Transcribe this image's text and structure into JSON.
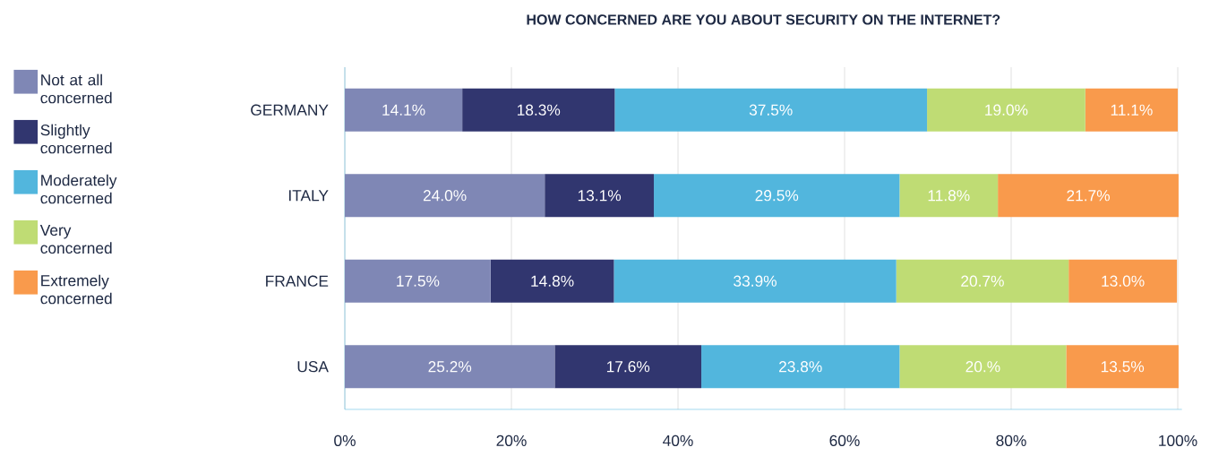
{
  "chart_data": {
    "type": "bar",
    "orientation": "horizontal",
    "stacked": true,
    "title": "HOW CONCERNED ARE YOU ABOUT SECURITY ON THE INTERNET?",
    "categories": [
      "GERMANY",
      "ITALY",
      "FRANCE",
      "USA"
    ],
    "series": [
      {
        "name": "Not at all concerned",
        "color": "#7f87b5",
        "values": [
          14.1,
          24.0,
          17.5,
          25.2
        ],
        "value_labels": [
          "14.1%",
          "24.0%",
          "17.5%",
          "25.2%"
        ]
      },
      {
        "name": "Slightly concerned",
        "color": "#31366f",
        "values": [
          18.3,
          13.1,
          14.8,
          17.6
        ],
        "value_labels": [
          "18.3%",
          "13.1%",
          "14.8%",
          "17.6%"
        ]
      },
      {
        "name": "Moderately concerned",
        "color": "#52b6dd",
        "values": [
          37.5,
          29.5,
          33.9,
          23.8
        ],
        "value_labels": [
          "37.5%",
          "29.5%",
          "33.9%",
          "23.8%"
        ]
      },
      {
        "name": "Very concerned",
        "color": "#bfdc74",
        "values": [
          19.0,
          11.8,
          20.7,
          20.0
        ],
        "value_labels": [
          "19.0%",
          "11.8%",
          "20.7%",
          "20.%"
        ]
      },
      {
        "name": "Extremely concerned",
        "color": "#f99a4c",
        "values": [
          11.1,
          21.7,
          13.0,
          13.5
        ],
        "value_labels": [
          "11.1%",
          "21.7%",
          "13.0%",
          "13.5%"
        ]
      }
    ],
    "xlim": [
      0,
      100.5
    ],
    "xticks": [
      {
        "value": 0,
        "label": "0%"
      },
      {
        "value": 20,
        "label": "20%"
      },
      {
        "value": 40,
        "label": "40%"
      },
      {
        "value": 60,
        "label": "60%"
      },
      {
        "value": 80,
        "label": "80%"
      },
      {
        "value": 100,
        "label": "100%"
      }
    ],
    "grid": "x",
    "legend": "left"
  }
}
